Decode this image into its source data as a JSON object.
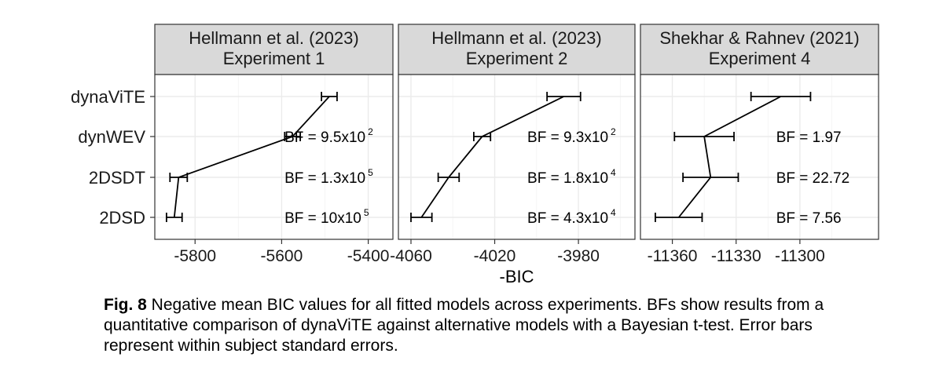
{
  "chart_data": {
    "type": "line",
    "models": [
      "dynaViTE",
      "dynWEV",
      "2DSDT",
      "2DSD"
    ],
    "xlabel": "-BIC",
    "panels": [
      {
        "title_line1": "Hellmann et al. (2023)",
        "title_line2": "Experiment 1",
        "xticks": [
          -5800,
          -5600,
          -5400
        ],
        "xtick_labels": [
          "-5800",
          "-5600",
          "-5400"
        ],
        "xlim": [
          -5893,
          -5343
        ],
        "points": [
          {
            "model": "dynaViTE",
            "x": -5490,
            "err": 18
          },
          {
            "model": "dynWEV",
            "x": -5575,
            "err": 18
          },
          {
            "model": "2DSDT",
            "x": -5838,
            "err": 20
          },
          {
            "model": "2DSD",
            "x": -5848,
            "err": 18
          }
        ],
        "bf": [
          {
            "model": "dynWEV",
            "label": "BF = 9.5x10",
            "exp": "2"
          },
          {
            "model": "2DSDT",
            "label": "BF = 1.3x10",
            "exp": "5"
          },
          {
            "model": "2DSD",
            "label": "BF = 10x10",
            "exp": "5"
          }
        ]
      },
      {
        "title_line1": "Hellmann et al. (2023)",
        "title_line2": "Experiment 2",
        "xticks": [
          -4060,
          -4020,
          -3980
        ],
        "xtick_labels": [
          "-4060",
          "-4020",
          "-3980"
        ],
        "xlim": [
          -4066,
          -3953
        ],
        "points": [
          {
            "model": "dynaViTE",
            "x": -3987,
            "err": 8
          },
          {
            "model": "dynWEV",
            "x": -4026,
            "err": 4
          },
          {
            "model": "2DSDT",
            "x": -4042,
            "err": 5
          },
          {
            "model": "2DSD",
            "x": -4055,
            "err": 5
          }
        ],
        "bf": [
          {
            "model": "dynWEV",
            "label": "BF = 9.3x10",
            "exp": "2"
          },
          {
            "model": "2DSDT",
            "label": "BF = 1.8x10",
            "exp": "4"
          },
          {
            "model": "2DSD",
            "label": "BF = 4.3x10",
            "exp": "4"
          }
        ]
      },
      {
        "title_line1": "Shekhar & Rahnev (2021)",
        "title_line2": "Experiment 4",
        "xticks": [
          -11360,
          -11330,
          -11300
        ],
        "xtick_labels": [
          "-11360",
          "-11330",
          "-11300"
        ],
        "xlim": [
          -11375,
          -11263
        ],
        "points": [
          {
            "model": "dynaViTE",
            "x": -11309,
            "err": 14
          },
          {
            "model": "dynWEV",
            "x": -11345,
            "err": 14
          },
          {
            "model": "2DSDT",
            "x": -11342,
            "err": 13
          },
          {
            "model": "2DSD",
            "x": -11357,
            "err": 11
          }
        ],
        "bf": [
          {
            "model": "dynWEV",
            "label": "BF = 1.97",
            "exp": ""
          },
          {
            "model": "2DSDT",
            "label": "BF = 22.72",
            "exp": ""
          },
          {
            "model": "2DSD",
            "label": "BF = 7.56",
            "exp": ""
          }
        ]
      }
    ]
  },
  "caption": {
    "label": "Fig. 8",
    "text": " Negative mean BIC values for all fitted models across experiments. BFs show results from a quantitative comparison of dynaViTE against alternative models with a Bayesian t-test. Error bars represent within subject standard errors."
  },
  "colors": {
    "strip_fill": "#d9d9d9",
    "strip_border": "#333333",
    "grid_major": "#ebebeb",
    "grid_minor": "#f5f5f5",
    "line": "#000000",
    "axis_text": "#1a1a1a"
  }
}
